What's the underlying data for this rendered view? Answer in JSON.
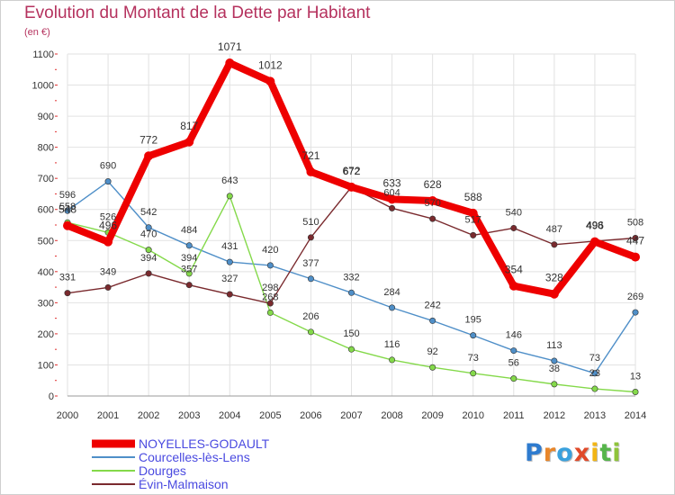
{
  "header": {
    "title": "Evolution du Montant de la Dette par Habitant",
    "unit": "(en €)"
  },
  "logo": {
    "letters": [
      "P",
      "r",
      "o",
      "x",
      "i",
      "t",
      "i"
    ],
    "colors": [
      "#2e7bcf",
      "#e8862a",
      "#3aa1dd",
      "#e04a2a",
      "#f2b514",
      "#56b54a",
      "#8fc43a"
    ]
  },
  "colors": {
    "NOYELLES-GODAULT": "#ee0000",
    "Courcelles-lès-Lens": "#4f8fc8",
    "Dourges": "#84d94a",
    "Évin-Malmaison": "#7a2a2e",
    "grid": "#e2e2e2",
    "axis_marks": "#e03030"
  },
  "chart_data": {
    "type": "line",
    "title": "Evolution du Montant de la Dette par Habitant",
    "ylabel": "(en €)",
    "xlabel": "",
    "x": [
      "2000",
      "2001",
      "2002",
      "2003",
      "2004",
      "2005",
      "2006",
      "2007",
      "2008",
      "2009",
      "2010",
      "2011",
      "2012",
      "2013",
      "2014"
    ],
    "ylim": [
      0,
      1100
    ],
    "yticks": [
      0,
      100,
      200,
      300,
      400,
      500,
      600,
      700,
      800,
      900,
      1000,
      1100
    ],
    "grid": true,
    "legend": "bottom-left",
    "series": [
      {
        "name": "NOYELLES-GODAULT",
        "values": [
          548,
          496,
          772,
          817,
          1071,
          1012,
          721,
          672,
          633,
          628,
          588,
          354,
          328,
          496,
          447
        ],
        "labels": [
          "548",
          "496",
          "772",
          "817",
          "1071",
          "1012",
          "721",
          "672",
          "633",
          "628",
          "588",
          "354",
          "328",
          "496",
          "447"
        ]
      },
      {
        "name": "Courcelles-lès-Lens",
        "values": [
          596,
          690,
          542,
          484,
          431,
          420,
          377,
          332,
          284,
          242,
          195,
          146,
          113,
          73,
          269
        ],
        "labels": [
          "596",
          "690",
          "542",
          "484",
          "431",
          "420",
          "377",
          "332",
          "284",
          "242",
          "195",
          "146",
          "113",
          "73",
          "269"
        ]
      },
      {
        "name": "Dourges",
        "values": [
          558,
          526,
          470,
          394,
          643,
          268,
          206,
          150,
          116,
          92,
          73,
          56,
          38,
          23,
          13
        ],
        "labels": [
          "558",
          "526",
          "470",
          "394",
          "643",
          "268",
          "206",
          "150",
          "116",
          "92",
          "73",
          "56",
          "38",
          "23",
          "13"
        ]
      },
      {
        "name": "Évin-Malmaison",
        "values": [
          331,
          349,
          394,
          357,
          327,
          298,
          510,
          672,
          604,
          570,
          517,
          540,
          487,
          498,
          508
        ],
        "labels": [
          "331",
          "349",
          "394",
          "357",
          "327",
          "298",
          "510",
          "672",
          "604",
          "570",
          "517",
          "540",
          "487",
          "498",
          "508"
        ]
      }
    ]
  }
}
